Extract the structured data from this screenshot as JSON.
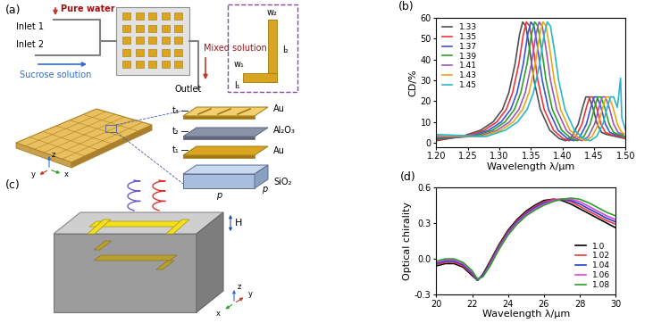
{
  "chart_data": [
    {
      "type": "line",
      "annotations": [
        {
          "text": "(b)"
        }
      ],
      "x_label": "Wavelength λ/μm",
      "y_label": "CD/%",
      "xlim": [
        1.2,
        1.5
      ],
      "xticks": [
        {
          "value": 1.2,
          "label": "1.20"
        },
        1.25,
        {
          "value": 1.3,
          "label": "1.30"
        },
        1.35,
        {
          "value": 1.4,
          "label": "1.40"
        },
        1.45,
        {
          "value": 1.5,
          "label": "1.50"
        }
      ],
      "ylim": [
        -2,
        60
      ],
      "yticks": [
        0,
        10,
        20,
        30,
        40,
        50,
        60
      ],
      "legend": "upper left",
      "series": [
        {
          "name": "1.33",
          "color": "#505050",
          "x": [
            1.2,
            1.24,
            1.27,
            1.29,
            1.305,
            1.315,
            1.325,
            1.332,
            1.337,
            1.342,
            1.348,
            1.355,
            1.365,
            1.38,
            1.395,
            1.405,
            1.415,
            1.425,
            1.432,
            1.437,
            1.442,
            1.448,
            1.455,
            1.462,
            1.47,
            1.485,
            1.5
          ],
          "values": [
            1,
            3,
            6,
            10,
            16,
            24,
            38,
            52,
            58,
            56,
            45,
            30,
            16,
            6,
            2,
            1,
            3,
            9,
            17,
            22,
            22,
            17,
            9,
            5,
            4,
            3,
            2
          ]
        },
        {
          "name": "1.35",
          "color": "#e8383d",
          "x": [
            1.2,
            1.246,
            1.276,
            1.296,
            1.311,
            1.321,
            1.331,
            1.338,
            1.343,
            1.348,
            1.354,
            1.361,
            1.371,
            1.386,
            1.401,
            1.411,
            1.421,
            1.431,
            1.438,
            1.443,
            1.448,
            1.454,
            1.461,
            1.468,
            1.476,
            1.491,
            1.5
          ],
          "values": [
            1.5,
            3,
            6,
            10,
            16,
            24,
            38,
            52,
            58,
            56,
            45,
            30,
            16,
            6,
            2,
            1,
            3,
            9,
            17,
            22,
            22,
            17,
            9,
            5,
            4,
            3,
            2
          ]
        },
        {
          "name": "1.37",
          "color": "#3a55d8",
          "x": [
            1.2,
            1.253,
            1.283,
            1.303,
            1.318,
            1.328,
            1.338,
            1.345,
            1.35,
            1.355,
            1.361,
            1.368,
            1.378,
            1.393,
            1.408,
            1.418,
            1.428,
            1.438,
            1.445,
            1.45,
            1.455,
            1.461,
            1.468,
            1.475,
            1.483,
            1.5
          ],
          "values": [
            2,
            3,
            6,
            10,
            16,
            24,
            38,
            52,
            58,
            56,
            45,
            30,
            16,
            6,
            2,
            1,
            3,
            9,
            17,
            22,
            22,
            17,
            9,
            5,
            4,
            3
          ]
        },
        {
          "name": "1.39",
          "color": "#2ca02c",
          "x": [
            1.2,
            1.259,
            1.289,
            1.309,
            1.324,
            1.334,
            1.344,
            1.351,
            1.356,
            1.361,
            1.367,
            1.374,
            1.384,
            1.399,
            1.414,
            1.424,
            1.434,
            1.444,
            1.451,
            1.456,
            1.461,
            1.467,
            1.474,
            1.481,
            1.489,
            1.5
          ],
          "values": [
            2.5,
            3,
            6,
            10,
            16,
            24,
            38,
            52,
            58,
            56,
            45,
            30,
            16,
            6,
            2,
            1,
            3,
            9,
            17,
            22,
            22,
            17,
            9,
            5,
            4,
            3
          ]
        },
        {
          "name": "1.41",
          "color": "#9b59b6",
          "x": [
            1.2,
            1.266,
            1.296,
            1.316,
            1.331,
            1.341,
            1.351,
            1.358,
            1.363,
            1.368,
            1.374,
            1.381,
            1.391,
            1.406,
            1.421,
            1.431,
            1.441,
            1.451,
            1.458,
            1.463,
            1.468,
            1.474,
            1.481,
            1.488,
            1.496
          ],
          "values": [
            3,
            3,
            6,
            10,
            16,
            24,
            38,
            52,
            58,
            56,
            45,
            30,
            16,
            6,
            2,
            1,
            3,
            9,
            17,
            22,
            22,
            17,
            9,
            5,
            4
          ]
        },
        {
          "name": "1.43",
          "color": "#e6a817",
          "x": [
            1.2,
            1.272,
            1.302,
            1.322,
            1.337,
            1.347,
            1.357,
            1.364,
            1.369,
            1.374,
            1.38,
            1.387,
            1.397,
            1.412,
            1.427,
            1.437,
            1.447,
            1.457,
            1.464,
            1.469,
            1.474,
            1.48,
            1.487,
            1.494,
            1.5
          ],
          "values": [
            3.5,
            3,
            6,
            10,
            16,
            24,
            38,
            52,
            58,
            56,
            45,
            30,
            16,
            6,
            2,
            1,
            3,
            9,
            17,
            22,
            22,
            17,
            9,
            5,
            4
          ]
        },
        {
          "name": "1.45",
          "color": "#2ab7c9",
          "x": [
            1.2,
            1.279,
            1.309,
            1.329,
            1.344,
            1.354,
            1.364,
            1.371,
            1.376,
            1.381,
            1.387,
            1.394,
            1.404,
            1.419,
            1.434,
            1.444,
            1.454,
            1.464,
            1.471,
            1.476,
            1.481,
            1.487,
            1.49,
            1.492,
            1.494,
            1.5
          ],
          "values": [
            4,
            3,
            6,
            10,
            16,
            24,
            38,
            52,
            58,
            56,
            45,
            30,
            16,
            6,
            2,
            1,
            3,
            9,
            17,
            22,
            22,
            17,
            25,
            31,
            12,
            6
          ]
        }
      ]
    },
    {
      "type": "line",
      "annotations": [
        {
          "text": "(d)"
        }
      ],
      "x_label": "Wavelength λ/μm",
      "y_label": "Optical chirality",
      "xlim": [
        20,
        30
      ],
      "xticks": [
        20,
        22,
        24,
        26,
        28,
        30
      ],
      "ylim": [
        -0.3,
        0.6
      ],
      "yticks": [
        -0.3,
        0.0,
        0.3,
        0.6
      ],
      "legend": "lower right",
      "x": [
        20,
        20.5,
        21,
        21.5,
        22,
        22.3,
        22.6,
        23,
        23.5,
        24,
        24.5,
        25,
        25.5,
        26,
        26.5,
        27,
        27.5,
        28,
        28.5,
        29,
        29.5,
        30
      ],
      "series": [
        {
          "name": "1.0",
          "color": "#000000",
          "values": [
            -0.06,
            -0.04,
            -0.04,
            -0.07,
            -0.14,
            -0.18,
            -0.13,
            -0.02,
            0.12,
            0.24,
            0.33,
            0.4,
            0.45,
            0.49,
            0.5,
            0.49,
            0.46,
            0.42,
            0.38,
            0.34,
            0.3,
            0.26
          ]
        },
        {
          "name": "1.02",
          "color": "#e8383d",
          "values": [
            -0.05,
            -0.03,
            -0.03,
            -0.06,
            -0.13,
            -0.18,
            -0.14,
            -0.03,
            0.11,
            0.23,
            0.32,
            0.39,
            0.44,
            0.48,
            0.5,
            0.5,
            0.48,
            0.44,
            0.4,
            0.36,
            0.32,
            0.29
          ]
        },
        {
          "name": "1.04",
          "color": "#1f3fd6",
          "values": [
            -0.04,
            -0.02,
            -0.02,
            -0.05,
            -0.12,
            -0.18,
            -0.14,
            -0.04,
            0.1,
            0.22,
            0.31,
            0.38,
            0.43,
            0.47,
            0.49,
            0.5,
            0.49,
            0.46,
            0.42,
            0.38,
            0.34,
            0.31
          ]
        },
        {
          "name": "1.06",
          "color": "#e040e0",
          "values": [
            -0.03,
            -0.01,
            -0.01,
            -0.04,
            -0.11,
            -0.17,
            -0.15,
            -0.05,
            0.09,
            0.21,
            0.3,
            0.37,
            0.42,
            0.46,
            0.49,
            0.5,
            0.5,
            0.48,
            0.44,
            0.4,
            0.36,
            0.33
          ]
        },
        {
          "name": "1.08",
          "color": "#2ca02c",
          "values": [
            -0.02,
            0.0,
            0.0,
            -0.03,
            -0.1,
            -0.17,
            -0.15,
            -0.06,
            0.08,
            0.2,
            0.29,
            0.36,
            0.41,
            0.45,
            0.48,
            0.5,
            0.51,
            0.5,
            0.47,
            0.43,
            0.39,
            0.36
          ]
        }
      ]
    }
  ],
  "diagrams": {
    "panel_a": {
      "label": "(a)",
      "inlet_1": "Inlet 1",
      "pure_water": "Pure water",
      "inlet_2": "Inlet 2",
      "sucrose_solution": "Sucrose solution",
      "mixed_solution": "Mixed solution",
      "outlet": "Outlet",
      "unit_cell": {
        "w2": "w₂",
        "w1": "w₁",
        "l2": "l₂",
        "l1": "l₁"
      },
      "layers": [
        {
          "thickness": "t₃",
          "material": "Au"
        },
        {
          "thickness": "t₂",
          "material": "Al₂O₃"
        },
        {
          "thickness": "t₁",
          "material": "Au"
        },
        {
          "material": "SiO₂"
        }
      ],
      "period": [
        "p",
        "p"
      ],
      "axes": [
        "z",
        "y",
        "x"
      ]
    },
    "panel_c": {
      "label": "(c)",
      "height": "H",
      "axes": [
        "z",
        "y",
        "x"
      ]
    }
  }
}
